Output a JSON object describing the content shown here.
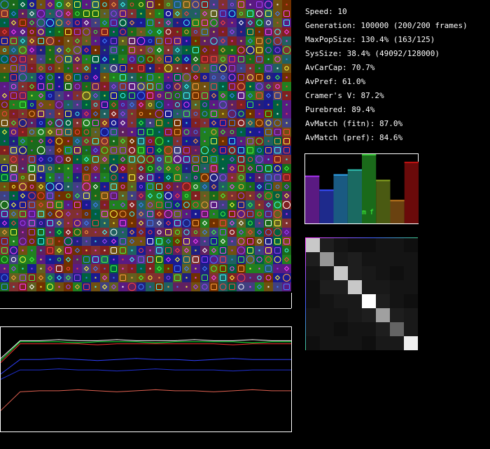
{
  "stats": [
    "Speed: 10",
    "Generation: 100000 (200/200 frames)",
    "MaxPopSize: 130.4% (163/125)",
    "SysSize: 38.4% (49092/128000)",
    "AvCarCap: 70.7%",
    "AvPref: 61.0%",
    "Cramer's V: 87.2%",
    "Purebred: 89.4%",
    "AvMatch (fitn): 87.0%",
    "AvMatch (pref): 84.6%"
  ],
  "histogram": {
    "labels": [
      "m",
      "f"
    ],
    "ylim": [
      0,
      100
    ],
    "bars": [
      {
        "color": "#5a1a82",
        "values": 69
      },
      {
        "color": "#1e2a8c",
        "values": 49
      },
      {
        "color": "#1a5a82",
        "values": 71
      },
      {
        "color": "#1a6a62",
        "values": 78
      },
      {
        "color": "#1a6a1a",
        "values": 100
      },
      {
        "color": "#4a5a12",
        "values": 63
      },
      {
        "color": "#6a4210",
        "values": 34
      },
      {
        "color": "#6a0a0a",
        "values": 89
      }
    ]
  },
  "matrix": {
    "values": [
      [
        200,
        30,
        20,
        15,
        15,
        20,
        20,
        15
      ],
      [
        30,
        150,
        25,
        30,
        20,
        20,
        20,
        20
      ],
      [
        20,
        25,
        200,
        30,
        25,
        20,
        15,
        20
      ],
      [
        15,
        30,
        30,
        200,
        25,
        25,
        20,
        20
      ],
      [
        15,
        20,
        25,
        25,
        255,
        30,
        20,
        15
      ],
      [
        20,
        20,
        20,
        25,
        30,
        160,
        30,
        25
      ],
      [
        20,
        20,
        15,
        20,
        20,
        30,
        100,
        25
      ],
      [
        15,
        20,
        20,
        20,
        15,
        25,
        25,
        240
      ]
    ]
  },
  "history": {
    "ylim": [
      0,
      100
    ],
    "series": [
      {
        "color": "#ffffff",
        "values": [
          70,
          87,
          87,
          88,
          87,
          87,
          88,
          87,
          87,
          87,
          88,
          87,
          87,
          88,
          87,
          87
        ]
      },
      {
        "color": "#20ff40",
        "values": [
          68,
          86,
          86,
          86,
          85,
          86,
          86,
          86,
          85,
          86,
          86,
          86,
          86,
          85,
          86,
          86
        ]
      },
      {
        "color": "#ff3030",
        "values": [
          66,
          84,
          84,
          84,
          84,
          83,
          84,
          84,
          84,
          84,
          84,
          84,
          83,
          84,
          84,
          84
        ]
      },
      {
        "color": "#3040ff",
        "values": [
          55,
          69,
          69,
          70,
          69,
          68,
          69,
          70,
          69,
          69,
          68,
          69,
          70,
          69,
          69,
          69
        ]
      },
      {
        "color": "#2030d0",
        "values": [
          50,
          59,
          59,
          60,
          59,
          59,
          58,
          59,
          60,
          59,
          59,
          59,
          58,
          59,
          59,
          59
        ]
      },
      {
        "color": "#e06050",
        "values": [
          20,
          38,
          39,
          39,
          40,
          39,
          38,
          39,
          40,
          39,
          39,
          38,
          39,
          40,
          39,
          39
        ]
      }
    ]
  }
}
